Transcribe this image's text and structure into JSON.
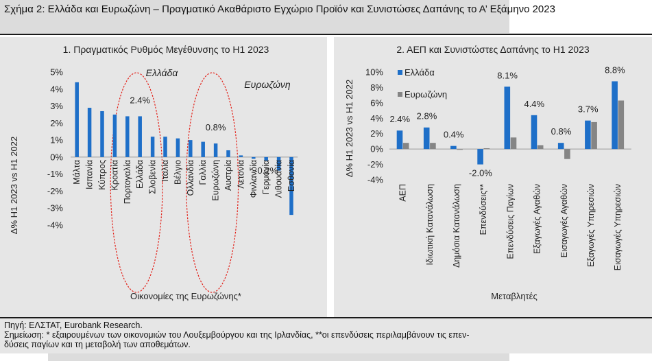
{
  "figure": {
    "title": "Σχήμα 2: Ελλάδα και Ευρωζώνη – Πραγματικό Ακαθάριστο Εγχώριο Προϊόν και Συνιστώσες Δαπάνης το Α’ Εξάμηνο 2023"
  },
  "footer": {
    "source": "Πηγή: ΕΛΣΤΑΤ, Eurobank Research.",
    "note_line1": "Σημείωση: * εξαιρουμένων των οικονομιών του Λουξεμβούργου και της Ιρλανδίας, **οι επενδύσεις περιλαμβάνουν τις επεν-",
    "note_line2": "δύσεις παγίων και τη μεταβολή των αποθεμάτων."
  },
  "colors": {
    "blue": "#1e6fc8",
    "grey": "#858585",
    "ellipse": "#e32119",
    "panel": "#e6e6e6"
  },
  "chart_data": [
    {
      "type": "bar",
      "title": "1. Πραγματικός Ρυθμός Μεγέθυνσης το Η1 2023",
      "xlabel": "Οικονομίες της Ευρωζώνης*",
      "ylabel": "Δ% Η1 2023 vs Η1 2022",
      "ylim": [
        -4,
        5
      ],
      "yticks": [
        "5%",
        "4%",
        "3%",
        "2%",
        "1%",
        "0%",
        "-1%",
        "-2%",
        "-3%",
        "-4%"
      ],
      "categories": [
        "Μάλτα",
        "Ισπανία",
        "Κύπρος",
        "Κροατία",
        "Πορτογαλία",
        "Ελλάδα",
        "Σλοβενία",
        "Ιταλία",
        "Βέλγιο",
        "Ολλανδία",
        "Γαλλία",
        "Ευρωζώνη",
        "Αυστρία",
        "Λετονία",
        "Φινλανδία",
        "Γερμανία",
        "Λιθουανία",
        "Εσθονία"
      ],
      "values": [
        4.4,
        2.9,
        2.7,
        2.5,
        2.4,
        2.4,
        1.2,
        1.2,
        1.1,
        1.0,
        0.9,
        0.8,
        0.4,
        0.1,
        -0.1,
        -0.2,
        -0.8,
        -3.4
      ],
      "data_labels": [
        {
          "category": "Ελλάδα",
          "text": "2.4%"
        },
        {
          "category": "Ευρωζώνη",
          "text": "0.8%"
        },
        {
          "category": "Γερμανία",
          "text": "-0.2%"
        }
      ],
      "annotations": {
        "greece": "Ελλάδα",
        "eurozone": "Ευρωζώνη"
      },
      "highlight_ellipses": [
        "Ελλάδα",
        "Ευρωζώνη"
      ],
      "grid": false
    },
    {
      "type": "bar",
      "title": "2. ΑΕΠ και Συνιστώστες Δαπάνης το Η1 2023",
      "xlabel": "Μεταβλητές",
      "ylabel": "Δ% Η1 2023 vs Η1 2022",
      "ylim": [
        -4,
        10
      ],
      "yticks": [
        "10%",
        "8%",
        "6%",
        "4%",
        "2%",
        "0%",
        "-2%",
        "-4%"
      ],
      "legend": "top-left",
      "categories": [
        "ΑΕΠ",
        "Ιδιωτική Κατανάλωση",
        "Δημόσια Κατανάλωση",
        "Επενδύσεις**",
        "Επενδύσεις Παγίων",
        "Εξαγωγές Αγαθών",
        "Εισαγωγές Αγαθών",
        "Εξαγωγές Υπηρεσιών",
        "Εισαγωγές Υπηρεσιών"
      ],
      "series": [
        {
          "name": "Ελλάδα",
          "values": [
            2.4,
            2.8,
            0.4,
            -2.0,
            8.1,
            4.4,
            0.8,
            3.7,
            8.8
          ],
          "labels": [
            "2.4%",
            "2.8%",
            "0.4%",
            "-2.0%",
            "8.1%",
            "4.4%",
            "0.8%",
            "3.7%",
            "8.8%"
          ]
        },
        {
          "name": "Ευρωζώνη",
          "values": [
            0.8,
            0.8,
            -0.1,
            0.1,
            1.5,
            0.5,
            -1.3,
            3.5,
            6.3
          ]
        }
      ],
      "grid": false
    }
  ]
}
